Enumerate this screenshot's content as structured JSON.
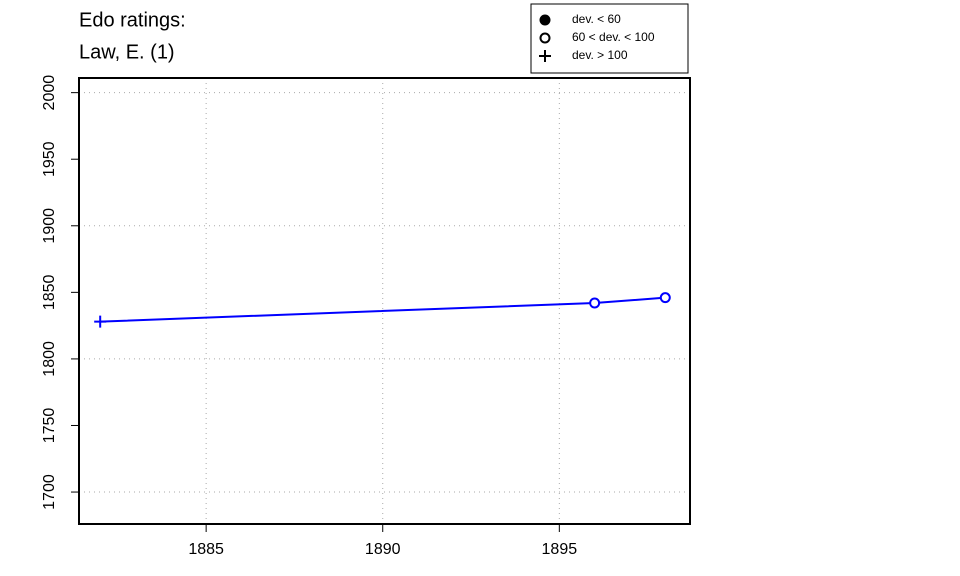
{
  "chart_data": {
    "type": "line",
    "title": "Edo ratings:",
    "subtitle": "Law, E. (1)",
    "x": [
      1882,
      1896,
      1898
    ],
    "series": [
      {
        "name": "Law, E. (1)",
        "color": "#0000ff",
        "values": [
          1828,
          1842,
          1846
        ],
        "markers": [
          "plus",
          "circle",
          "circle"
        ]
      }
    ],
    "xlim": [
      1881.4,
      1898.7
    ],
    "ylim": [
      1676,
      2011
    ],
    "xticks": [
      1885,
      1890,
      1895
    ],
    "yticks": [
      1700,
      1750,
      1800,
      1850,
      1900,
      1950,
      2000
    ],
    "xgrid": [
      1885,
      1890,
      1895
    ],
    "ygrid": [
      1700,
      1800,
      1900,
      2000
    ],
    "grid": true,
    "legend_position": "top-right",
    "legend": [
      {
        "label": "dev. < 60",
        "symbol": "dot"
      },
      {
        "label": "60 < dev. < 100",
        "symbol": "circle"
      },
      {
        "label": "dev. > 100",
        "symbol": "plus"
      }
    ]
  }
}
